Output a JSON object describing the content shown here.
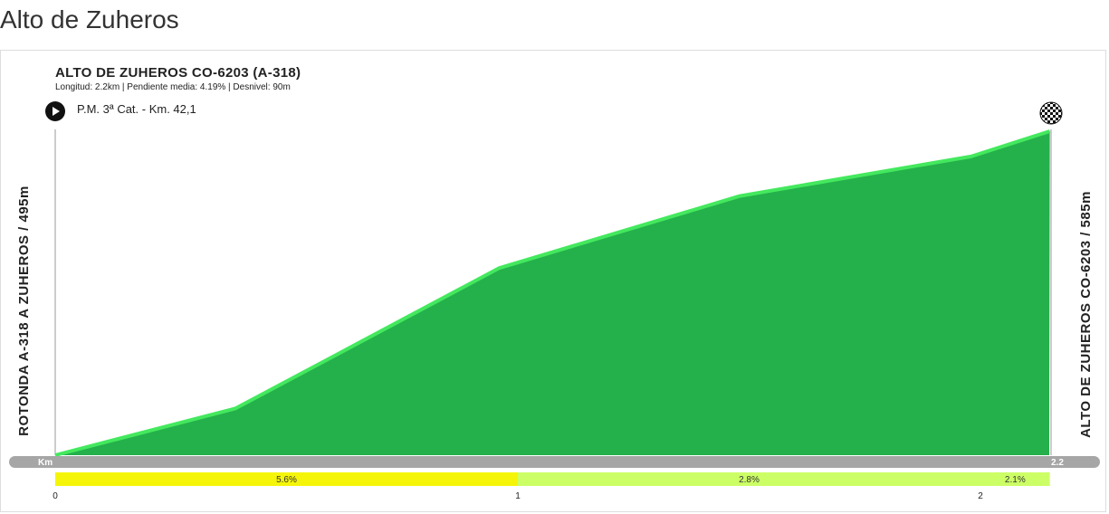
{
  "page": {
    "title": "Alto de Zuheros"
  },
  "chart_data": {
    "type": "area",
    "title": "ALTO DE ZUHEROS CO-6203  (A-318)",
    "subtitle": "Longitud: 2.2km | Pendiente media: 4.19% | Desnivel: 90m",
    "waypoint": "P.M. 3ª Cat. - Km. 42,1",
    "start_label": "ROTONDA A-318 A ZUHEROS / 495m",
    "end_label": "ALTO DE ZUHEROS CO-6203 / 585m",
    "x_unit_label": "Km",
    "x_end_label": "2.2",
    "xlim": [
      0,
      2.2
    ],
    "ylim": [
      495,
      585
    ],
    "x_ticks": [
      0,
      1,
      2
    ],
    "x_tick_labels": [
      "0",
      "1",
      "2"
    ],
    "profile": {
      "x": [
        0,
        0.39,
        0.96,
        1.48,
        1.98,
        2.15
      ],
      "y": [
        495,
        508,
        547,
        567,
        578,
        585
      ]
    },
    "gradient_segments": [
      {
        "from": 0,
        "to": 1,
        "label": "5.6%",
        "color": "#f5f50a"
      },
      {
        "from": 1,
        "to": 2,
        "label": "2.8%",
        "color": "#ccff66"
      },
      {
        "from": 2,
        "to": 2.15,
        "label": "2.1%",
        "color": "#ccff66"
      }
    ],
    "colors": {
      "fill": "#24b04b",
      "line": "#44e85e",
      "axis_bar": "#a6a6a6"
    }
  }
}
